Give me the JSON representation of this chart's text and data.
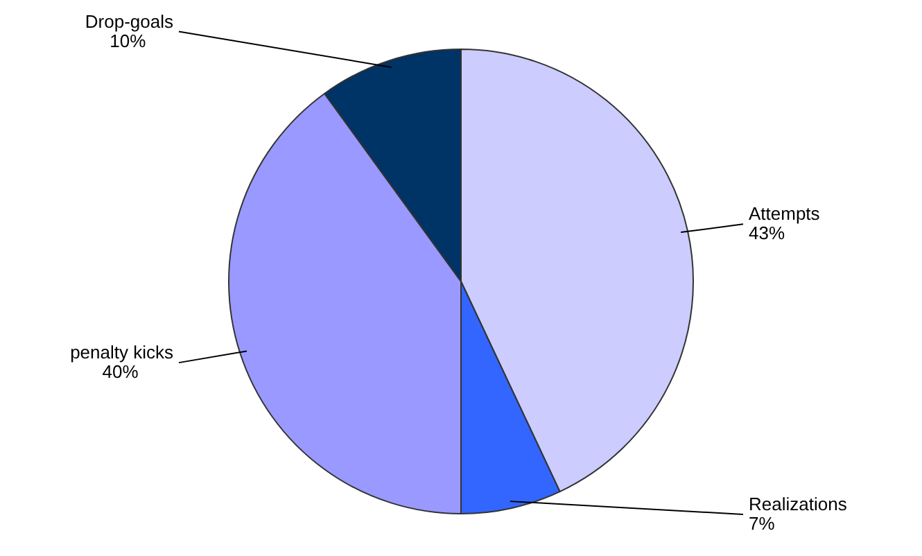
{
  "chart_data": {
    "type": "pie",
    "categories": [
      "Attempts",
      "Realizations",
      "penalty kicks",
      "Drop-goals"
    ],
    "values": [
      43,
      7,
      40,
      10
    ],
    "value_labels": [
      "43%",
      "7%",
      "40%",
      "10%"
    ],
    "colors": [
      "#ccccff",
      "#3366ff",
      "#9999ff",
      "#003366"
    ],
    "legend": false
  }
}
